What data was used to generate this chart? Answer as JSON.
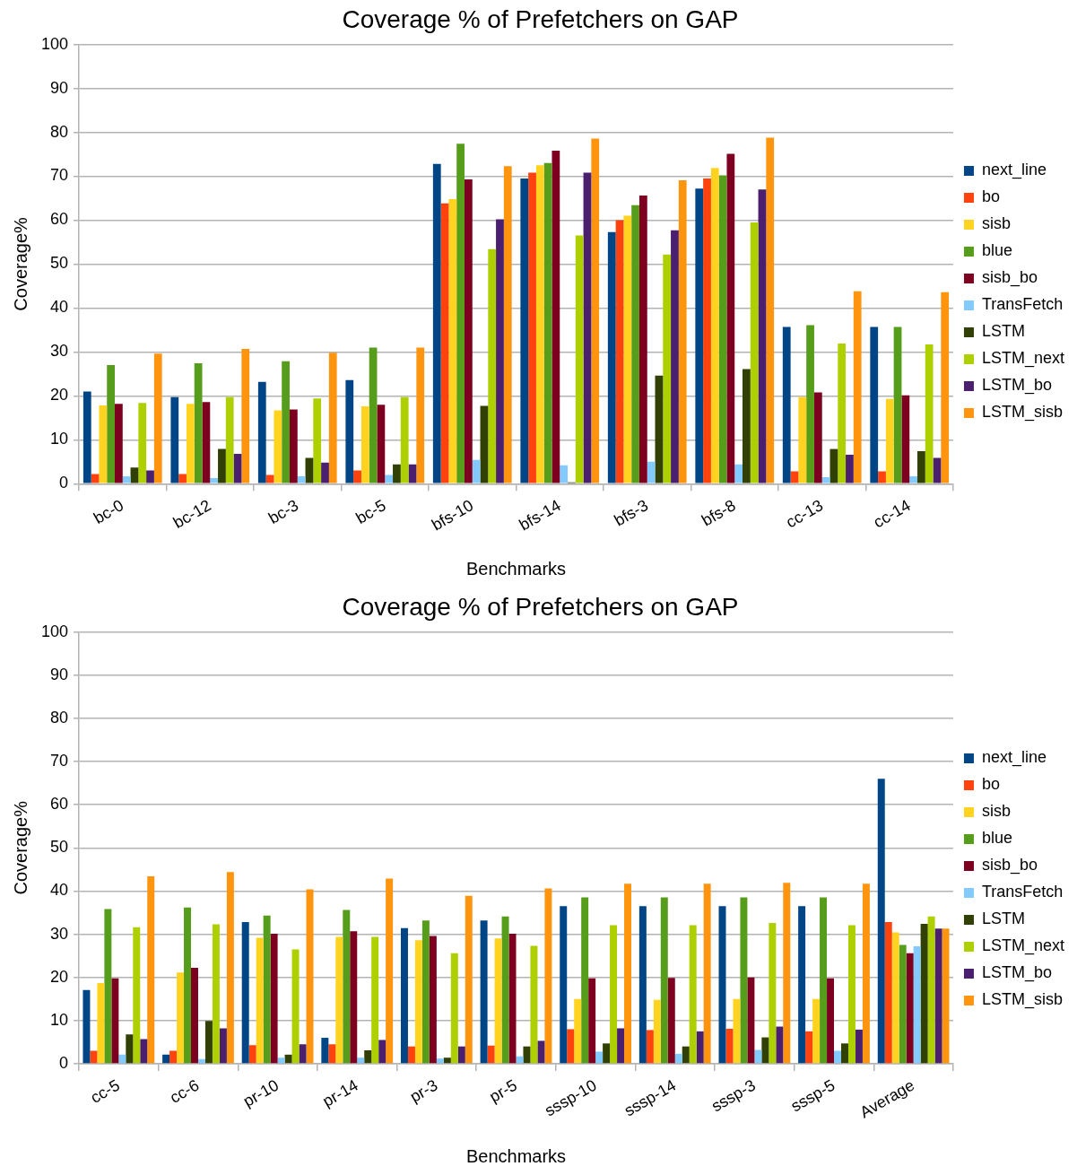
{
  "chart_data": [
    {
      "type": "bar",
      "title": "Coverage % of Prefetchers on GAP",
      "xlabel": "Benchmarks",
      "ylabel": "Coverage%",
      "categories": [
        "bc-0",
        "bc-12",
        "bc-3",
        "bc-5",
        "bfs-10",
        "bfs-14",
        "bfs-3",
        "bfs-8",
        "cc-13",
        "cc-14"
      ],
      "ylim": [
        0,
        100
      ],
      "yticks": [
        0,
        10,
        20,
        30,
        40,
        50,
        60,
        70,
        80,
        90,
        100
      ],
      "grid": "y",
      "legend": "right",
      "series": [
        {
          "name": "next_line",
          "color": "#004586",
          "values": [
            21,
            19.7,
            23.2,
            23.6,
            72.8,
            69.5,
            57.3,
            67.2,
            35.7,
            35.7
          ]
        },
        {
          "name": "bo",
          "color": "#ff420e",
          "values": [
            2.2,
            2.2,
            2,
            3,
            63.8,
            70.8,
            60,
            69.5,
            2.8,
            2.8
          ]
        },
        {
          "name": "sisb",
          "color": "#ffd320",
          "values": [
            17.8,
            18.2,
            16.7,
            17.6,
            64.8,
            72.5,
            61,
            71.9,
            19.7,
            19.3
          ]
        },
        {
          "name": "blue",
          "color": "#579d1c",
          "values": [
            27,
            27.4,
            27.9,
            31,
            77.4,
            73,
            63.4,
            70.2,
            36.1,
            35.7
          ]
        },
        {
          "name": "sisb_bo",
          "color": "#7e0021",
          "values": [
            18.2,
            18.6,
            16.9,
            18,
            69.3,
            75.8,
            65.6,
            75.1,
            20.8,
            20.1
          ]
        },
        {
          "name": "TransFetch",
          "color": "#83caff",
          "values": [
            1.7,
            1.3,
            1.7,
            2,
            5.4,
            4.2,
            5,
            4.4,
            1.5,
            1.7
          ]
        },
        {
          "name": "LSTM",
          "color": "#314004",
          "values": [
            3.7,
            7.9,
            5.9,
            4.4,
            17.7,
            0.3,
            24.6,
            26.1,
            7.9,
            7.4
          ]
        },
        {
          "name": "LSTM_next",
          "color": "#aecf00",
          "values": [
            18.4,
            19.7,
            19.4,
            19.7,
            53.4,
            56.5,
            52.2,
            59.5,
            31.9,
            31.7
          ]
        },
        {
          "name": "LSTM_bo",
          "color": "#4b1f6f",
          "values": [
            3,
            6.8,
            4.8,
            4.4,
            60.2,
            70.8,
            57.7,
            67,
            6.6,
            5.9
          ]
        },
        {
          "name": "LSTM_sisb",
          "color": "#ff950e",
          "values": [
            29.6,
            30.7,
            29.8,
            31,
            72.3,
            78.6,
            69.1,
            78.8,
            43.8,
            43.6
          ]
        }
      ]
    },
    {
      "type": "bar",
      "title": "Coverage % of Prefetchers on GAP",
      "xlabel": "Benchmarks",
      "ylabel": "Coverage%",
      "categories": [
        "cc-5",
        "cc-6",
        "pr-10",
        "pr-14",
        "pr-3",
        "pr-5",
        "sssp-10",
        "sssp-14",
        "sssp-3",
        "sssp-5",
        "Average"
      ],
      "ylim": [
        0,
        100
      ],
      "yticks": [
        0,
        10,
        20,
        30,
        40,
        50,
        60,
        70,
        80,
        90,
        100
      ],
      "grid": "y",
      "legend": "right",
      "series": [
        {
          "name": "next_line",
          "color": "#004586",
          "values": [
            17.1,
            2.1,
            32.8,
            6,
            31.4,
            33.2,
            36.5,
            36.5,
            36.5,
            36.5,
            66
          ]
        },
        {
          "name": "bo",
          "color": "#ff420e",
          "values": [
            3,
            3,
            4.3,
            4.5,
            4,
            4.2,
            8,
            7.8,
            8.1,
            7.5,
            32.8
          ]
        },
        {
          "name": "sisb",
          "color": "#ffd320",
          "values": [
            18.7,
            21.1,
            29.2,
            29.4,
            28.6,
            29,
            15,
            14.8,
            15,
            15,
            30.4
          ]
        },
        {
          "name": "blue",
          "color": "#579d1c",
          "values": [
            35.8,
            36.2,
            34.3,
            35.6,
            33.2,
            34.1,
            38.5,
            38.5,
            38.5,
            38.5,
            27.5
          ]
        },
        {
          "name": "sisb_bo",
          "color": "#7e0021",
          "values": [
            19.8,
            22.2,
            30.1,
            30.7,
            29.6,
            30.1,
            19.8,
            19.9,
            20,
            19.8,
            25.6
          ]
        },
        {
          "name": "TransFetch",
          "color": "#83caff",
          "values": [
            2.1,
            1.1,
            1.4,
            1.4,
            1.2,
            1.7,
            2.8,
            2.3,
            3.2,
            3,
            27.2
          ]
        },
        {
          "name": "LSTM",
          "color": "#314004",
          "values": [
            6.8,
            9.9,
            2.1,
            3.1,
            1.4,
            4,
            4.7,
            4,
            6.1,
            4.7,
            32.4
          ]
        },
        {
          "name": "LSTM_next",
          "color": "#aecf00",
          "values": [
            31.6,
            32.3,
            26.5,
            29.4,
            25.6,
            27.3,
            32.1,
            32.1,
            32.6,
            32.1,
            34.1
          ]
        },
        {
          "name": "LSTM_bo",
          "color": "#4b1f6f",
          "values": [
            5.7,
            8.2,
            4.5,
            5.5,
            4,
            5.3,
            8.2,
            7.5,
            8.6,
            7.9,
            31.3
          ]
        },
        {
          "name": "LSTM_sisb",
          "color": "#ff950e",
          "values": [
            43.4,
            44.4,
            40.4,
            42.9,
            38.9,
            40.6,
            41.7,
            41.7,
            41.9,
            41.7,
            31.3
          ]
        }
      ]
    }
  ]
}
